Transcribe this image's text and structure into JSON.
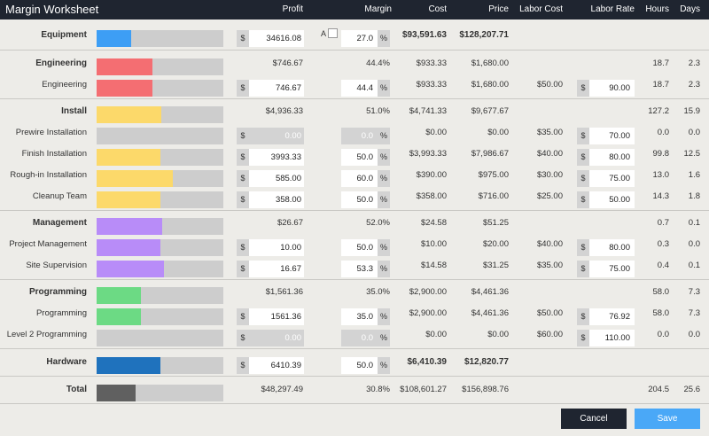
{
  "window": {
    "title": "Margin Worksheet"
  },
  "columns": {
    "profit": "Profit",
    "margin": "Margin",
    "cost": "Cost",
    "price": "Price",
    "labor_cost": "Labor Cost",
    "labor_rate": "Labor Rate",
    "hours": "Hours",
    "days": "Days"
  },
  "equipment": {
    "label": "Equipment",
    "color": "#3d9ef5",
    "fill_pct": 27,
    "currency": "$",
    "profit": "34616.08",
    "auto_label": "A",
    "margin": "27.0",
    "pct_sign": "%",
    "cost": "$93,591.63",
    "price": "$128,207.71"
  },
  "engineering": {
    "label": "Engineering",
    "color": "#f46e72",
    "fill_pct": 44.4,
    "profit": "$746.67",
    "margin": "44.4%",
    "cost": "$933.33",
    "price": "$1,680.00",
    "hours": "18.7",
    "days": "2.3",
    "items": [
      {
        "label": "Engineering",
        "fill_pct": 44.4,
        "profit": "746.67",
        "margin": "44.4",
        "cost": "$933.33",
        "price": "$1,680.00",
        "labor_cost": "$50.00",
        "labor_rate": "90.00",
        "hours": "18.7",
        "days": "2.3"
      }
    ]
  },
  "install": {
    "label": "Install",
    "color": "#fcd96a",
    "fill_pct": 51,
    "profit": "$4,936.33",
    "margin": "51.0%",
    "cost": "$4,741.33",
    "price": "$9,677.67",
    "hours": "127.2",
    "days": "15.9",
    "items": [
      {
        "label": "Prewire Installation",
        "fill_pct": 0,
        "profit": "0.00",
        "margin": "0.0",
        "cost": "$0.00",
        "price": "$0.00",
        "labor_cost": "$35.00",
        "labor_rate": "70.00",
        "hours": "0.0",
        "days": "0.0"
      },
      {
        "label": "Finish Installation",
        "fill_pct": 50,
        "profit": "3993.33",
        "margin": "50.0",
        "cost": "$3,993.33",
        "price": "$7,986.67",
        "labor_cost": "$40.00",
        "labor_rate": "80.00",
        "hours": "99.8",
        "days": "12.5"
      },
      {
        "label": "Rough-in Installation",
        "fill_pct": 60,
        "profit": "585.00",
        "margin": "60.0",
        "cost": "$390.00",
        "price": "$975.00",
        "labor_cost": "$30.00",
        "labor_rate": "75.00",
        "hours": "13.0",
        "days": "1.6"
      },
      {
        "label": "Cleanup Team",
        "fill_pct": 50,
        "profit": "358.00",
        "margin": "50.0",
        "cost": "$358.00",
        "price": "$716.00",
        "labor_cost": "$25.00",
        "labor_rate": "50.00",
        "hours": "14.3",
        "days": "1.8"
      }
    ]
  },
  "management": {
    "label": "Management",
    "color": "#b88cf8",
    "fill_pct": 52,
    "profit": "$26.67",
    "margin": "52.0%",
    "cost": "$24.58",
    "price": "$51.25",
    "hours": "0.7",
    "days": "0.1",
    "items": [
      {
        "label": "Project Management",
        "fill_pct": 50,
        "profit": "10.00",
        "margin": "50.0",
        "cost": "$10.00",
        "price": "$20.00",
        "labor_cost": "$40.00",
        "labor_rate": "80.00",
        "hours": "0.3",
        "days": "0.0"
      },
      {
        "label": "Site Supervision",
        "fill_pct": 53.3,
        "profit": "16.67",
        "margin": "53.3",
        "cost": "$14.58",
        "price": "$31.25",
        "labor_cost": "$35.00",
        "labor_rate": "75.00",
        "hours": "0.4",
        "days": "0.1"
      }
    ]
  },
  "programming": {
    "label": "Programming",
    "color": "#6cda84",
    "fill_pct": 35,
    "profit": "$1,561.36",
    "margin": "35.0%",
    "cost": "$2,900.00",
    "price": "$4,461.36",
    "hours": "58.0",
    "days": "7.3",
    "items": [
      {
        "label": "Programming",
        "fill_pct": 35,
        "profit": "1561.36",
        "margin": "35.0",
        "cost": "$2,900.00",
        "price": "$4,461.36",
        "labor_cost": "$50.00",
        "labor_rate": "76.92",
        "hours": "58.0",
        "days": "7.3"
      },
      {
        "label": "Level 2 Programming",
        "fill_pct": 0,
        "profit": "0.00",
        "margin": "0.0",
        "cost": "$0.00",
        "price": "$0.00",
        "labor_cost": "$60.00",
        "labor_rate": "110.00",
        "hours": "0.0",
        "days": "0.0"
      }
    ]
  },
  "hardware": {
    "label": "Hardware",
    "color": "#1f72bd",
    "fill_pct": 50,
    "profit": "6410.39",
    "margin": "50.0",
    "cost": "$6,410.39",
    "price": "$12,820.77"
  },
  "total": {
    "label": "Total",
    "color": "#606060",
    "fill_pct": 30.8,
    "profit": "$48,297.49",
    "margin": "30.8%",
    "cost": "$108,601.27",
    "price": "$156,898.76",
    "hours": "204.5",
    "days": "25.6"
  },
  "buttons": {
    "cancel": "Cancel",
    "save": "Save"
  }
}
